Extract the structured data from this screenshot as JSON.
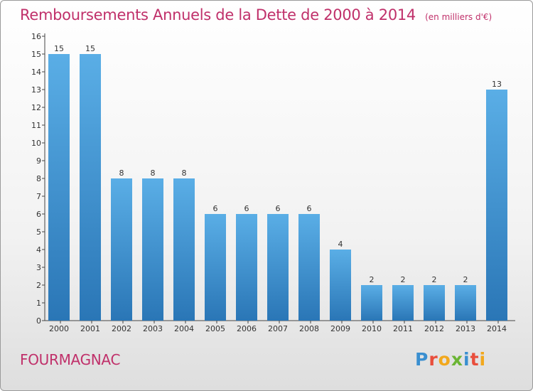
{
  "header": {
    "title": "Remboursements Annuels de la Dette de 2000 à 2014",
    "unit": "(en milliers d'€)"
  },
  "footer": {
    "commune": "FOURMAGNAC",
    "brand": "Proxiti",
    "brand_letters": [
      {
        "char": "P",
        "color": "#3a8fd0"
      },
      {
        "char": "r",
        "color": "#e94e3c"
      },
      {
        "char": "o",
        "color": "#f2a81d"
      },
      {
        "char": "x",
        "color": "#6bb534"
      },
      {
        "char": "i",
        "color": "#3a8fd0"
      },
      {
        "char": "t",
        "color": "#e94e3c"
      },
      {
        "char": "i",
        "color": "#f2a81d"
      }
    ]
  },
  "colors": {
    "bar_top": "#5aaee6",
    "bar_bottom": "#2a76b6",
    "accent": "#c0306a"
  },
  "chart_data": {
    "type": "bar",
    "title": "Remboursements Annuels de la Dette de 2000 à 2014",
    "ylabel": "",
    "xlabel": "",
    "categories": [
      "2000",
      "2001",
      "2002",
      "2003",
      "2004",
      "2005",
      "2006",
      "2007",
      "2008",
      "2009",
      "2010",
      "2011",
      "2012",
      "2013",
      "2014"
    ],
    "values": [
      15,
      15,
      8,
      8,
      8,
      6,
      6,
      6,
      6,
      4,
      2,
      2,
      2,
      2,
      13
    ],
    "yticks": [
      0,
      1,
      2,
      3,
      4,
      5,
      6,
      7,
      8,
      9,
      10,
      11,
      12,
      13,
      14,
      15,
      16
    ],
    "ylim": [
      0,
      16
    ],
    "grid": false,
    "data_labels": true
  }
}
